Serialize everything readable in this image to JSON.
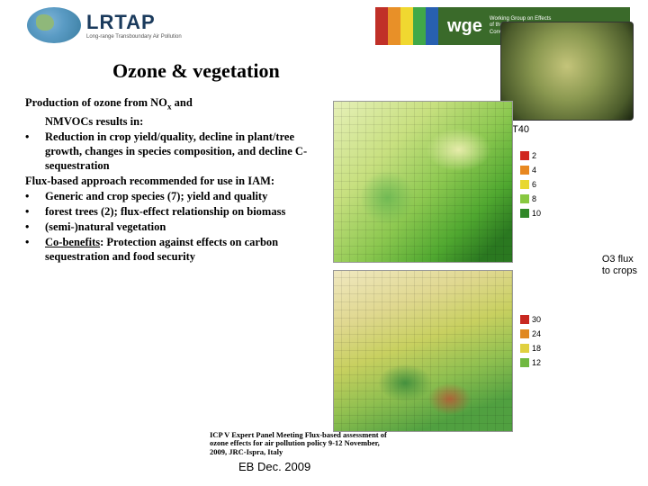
{
  "header": {
    "logo_main": "LRTAP",
    "logo_sub": "Long-range Transboundary Air Pollution",
    "color_bars": [
      "#c03028",
      "#e89028",
      "#f0d830",
      "#40a848",
      "#2860b0"
    ],
    "wge_label": "wge",
    "wge_line1": "Working Group on Effects",
    "wge_line2": "of the",
    "wge_line3": "Convention on Long-range Transboundary Air Pollution"
  },
  "title": "Ozone & vegetation",
  "content": {
    "intro1": "Production of ozone from NO",
    "intro1_sub": "x",
    "intro1_cont": " and",
    "intro2": "NMVOCs results in:",
    "b1": "Reduction in crop yield/quality,  decline in plant/tree growth, changes in species composition, and decline C-sequestration",
    "mid1": "Flux-based approach recommended for use in IAM:",
    "b2": "Generic and crop species (7); yield and quality",
    "b3": "forest trees (2); flux-effect relationship on biomass",
    "b4": "(semi-)natural vegetation",
    "b5_u": "Co-benefits",
    "b5_rest": ": Protection against effects on carbon sequestration and food security"
  },
  "maps": {
    "label1": "AOT40",
    "label2a": "O3 flux",
    "label2b": "to crops",
    "legend1": {
      "values": [
        "2",
        "4",
        "6",
        "8",
        "10"
      ],
      "colors": [
        "#d02820",
        "#e88820",
        "#e8d830",
        "#88c840",
        "#308828"
      ]
    },
    "legend2": {
      "values": [
        "30",
        "24",
        "18",
        "12"
      ],
      "colors": [
        "#c82820",
        "#e08820",
        "#e0d040",
        "#70b840"
      ]
    }
  },
  "citation": "ICP V Expert Panel Meeting Flux-based assessment of ozone effects for air pollution policy 9-12 November, 2009, JRC-Ispra, Italy",
  "footer": "EB Dec. 2009"
}
